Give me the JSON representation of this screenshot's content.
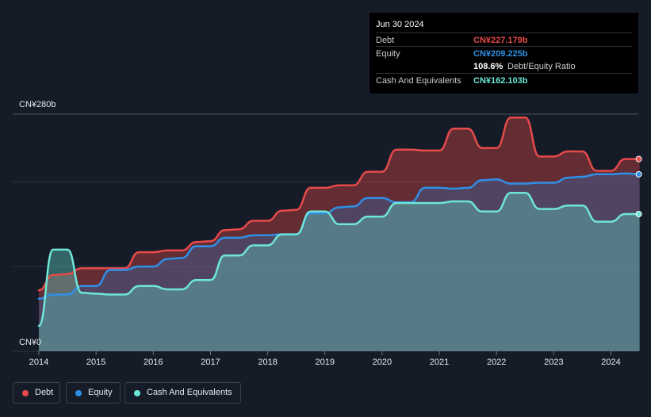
{
  "tooltip": {
    "date": "Jun 30 2024",
    "debt_label": "Debt",
    "debt_value": "CN¥227.179b",
    "equity_label": "Equity",
    "equity_value": "CN¥209.225b",
    "ratio_value": "108.6%",
    "ratio_label": "Debt/Equity Ratio",
    "cash_label": "Cash And Equivalents",
    "cash_value": "CN¥162.103b"
  },
  "legend": [
    {
      "label": "Debt",
      "color": "#e64a4a"
    },
    {
      "label": "Equity",
      "color": "#2f8fe6"
    },
    {
      "label": "Cash And Equivalents",
      "color": "#6ee6d6"
    }
  ],
  "chart_data": {
    "type": "area",
    "title": "",
    "xlabel": "",
    "ylabel": "",
    "unit": "CN¥ billions",
    "xlim": [
      2013.6,
      2024.5
    ],
    "ylim": [
      0,
      280
    ],
    "ytick_labels": [
      {
        "value": 280,
        "label": "CN¥280b"
      },
      {
        "value": 0,
        "label": "CN¥0"
      }
    ],
    "xticks": [
      {
        "value": 2014,
        "label": "2014"
      },
      {
        "value": 2015,
        "label": "2015"
      },
      {
        "value": 2016,
        "label": "2016"
      },
      {
        "value": 2017,
        "label": "2017"
      },
      {
        "value": 2018,
        "label": "2018"
      },
      {
        "value": 2019,
        "label": "2019"
      },
      {
        "value": 2020,
        "label": "2020"
      },
      {
        "value": 2021,
        "label": "2021"
      },
      {
        "value": 2022,
        "label": "2022"
      },
      {
        "value": 2023,
        "label": "2023"
      },
      {
        "value": 2024,
        "label": "2024"
      }
    ],
    "gridlines": [
      0,
      100,
      200,
      280
    ],
    "series": [
      {
        "name": "Debt",
        "color": "#e64a4a",
        "points": [
          [
            2014.0,
            72
          ],
          [
            2014.25,
            90
          ],
          [
            2014.5,
            91
          ],
          [
            2014.75,
            98
          ],
          [
            2015.0,
            98
          ],
          [
            2015.25,
            98
          ],
          [
            2015.5,
            98
          ],
          [
            2015.75,
            117
          ],
          [
            2016.0,
            117
          ],
          [
            2016.25,
            119
          ],
          [
            2016.5,
            119
          ],
          [
            2016.75,
            129
          ],
          [
            2017.0,
            130
          ],
          [
            2017.25,
            143
          ],
          [
            2017.5,
            144
          ],
          [
            2017.75,
            154
          ],
          [
            2018.0,
            154
          ],
          [
            2018.25,
            166
          ],
          [
            2018.5,
            167
          ],
          [
            2018.75,
            193
          ],
          [
            2019.0,
            193
          ],
          [
            2019.25,
            196
          ],
          [
            2019.5,
            196
          ],
          [
            2019.75,
            212
          ],
          [
            2020.0,
            212
          ],
          [
            2020.25,
            238
          ],
          [
            2020.5,
            238
          ],
          [
            2020.75,
            237
          ],
          [
            2021.0,
            237
          ],
          [
            2021.25,
            263
          ],
          [
            2021.5,
            263
          ],
          [
            2021.75,
            240
          ],
          [
            2022.0,
            240
          ],
          [
            2022.25,
            276
          ],
          [
            2022.5,
            276
          ],
          [
            2022.75,
            230
          ],
          [
            2023.0,
            230
          ],
          [
            2023.25,
            236
          ],
          [
            2023.5,
            236
          ],
          [
            2023.75,
            213
          ],
          [
            2024.0,
            213
          ],
          [
            2024.25,
            227
          ],
          [
            2024.5,
            227
          ]
        ]
      },
      {
        "name": "Equity",
        "color": "#2f8fe6",
        "points": [
          [
            2014.0,
            62
          ],
          [
            2014.25,
            67
          ],
          [
            2014.5,
            67
          ],
          [
            2014.75,
            77
          ],
          [
            2015.0,
            77
          ],
          [
            2015.25,
            96
          ],
          [
            2015.5,
            96
          ],
          [
            2015.75,
            100
          ],
          [
            2016.0,
            100
          ],
          [
            2016.25,
            109
          ],
          [
            2016.5,
            110
          ],
          [
            2016.75,
            124
          ],
          [
            2017.0,
            124
          ],
          [
            2017.25,
            134
          ],
          [
            2017.5,
            134
          ],
          [
            2017.75,
            137
          ],
          [
            2018.0,
            137
          ],
          [
            2018.25,
            138
          ],
          [
            2018.5,
            138
          ],
          [
            2018.75,
            163
          ],
          [
            2019.0,
            163
          ],
          [
            2019.25,
            170
          ],
          [
            2019.5,
            171
          ],
          [
            2019.75,
            181
          ],
          [
            2020.0,
            181
          ],
          [
            2020.25,
            176
          ],
          [
            2020.5,
            176
          ],
          [
            2020.75,
            193
          ],
          [
            2021.0,
            193
          ],
          [
            2021.25,
            192
          ],
          [
            2021.5,
            193
          ],
          [
            2021.75,
            202
          ],
          [
            2022.0,
            203
          ],
          [
            2022.25,
            198
          ],
          [
            2022.5,
            198
          ],
          [
            2022.75,
            199
          ],
          [
            2023.0,
            199
          ],
          [
            2023.25,
            205
          ],
          [
            2023.5,
            206
          ],
          [
            2023.75,
            209
          ],
          [
            2024.0,
            209
          ],
          [
            2024.25,
            210
          ],
          [
            2024.5,
            209
          ]
        ]
      },
      {
        "name": "Cash And Equivalents",
        "color": "#6ee6d6",
        "points": [
          [
            2014.0,
            30
          ],
          [
            2014.25,
            120
          ],
          [
            2014.5,
            120
          ],
          [
            2014.75,
            69
          ],
          [
            2015.0,
            68
          ],
          [
            2015.25,
            67
          ],
          [
            2015.5,
            67
          ],
          [
            2015.75,
            77
          ],
          [
            2016.0,
            77
          ],
          [
            2016.25,
            73
          ],
          [
            2016.5,
            73
          ],
          [
            2016.75,
            84
          ],
          [
            2017.0,
            84
          ],
          [
            2017.25,
            113
          ],
          [
            2017.5,
            113
          ],
          [
            2017.75,
            125
          ],
          [
            2018.0,
            125
          ],
          [
            2018.25,
            138
          ],
          [
            2018.5,
            138
          ],
          [
            2018.75,
            165
          ],
          [
            2019.0,
            165
          ],
          [
            2019.25,
            150
          ],
          [
            2019.5,
            150
          ],
          [
            2019.75,
            159
          ],
          [
            2020.0,
            159
          ],
          [
            2020.25,
            175
          ],
          [
            2020.5,
            175
          ],
          [
            2020.75,
            175
          ],
          [
            2021.0,
            175
          ],
          [
            2021.25,
            177
          ],
          [
            2021.5,
            177
          ],
          [
            2021.75,
            165
          ],
          [
            2022.0,
            165
          ],
          [
            2022.25,
            187
          ],
          [
            2022.5,
            187
          ],
          [
            2022.75,
            168
          ],
          [
            2023.0,
            168
          ],
          [
            2023.25,
            172
          ],
          [
            2023.5,
            172
          ],
          [
            2023.75,
            153
          ],
          [
            2024.0,
            153
          ],
          [
            2024.25,
            162
          ],
          [
            2024.5,
            162
          ]
        ]
      }
    ]
  }
}
